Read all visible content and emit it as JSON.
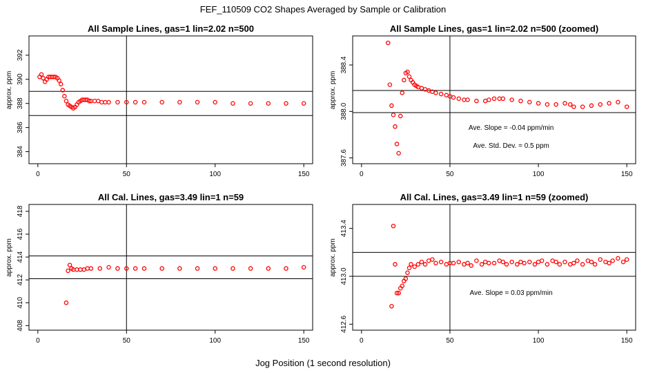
{
  "figure": {
    "title": "FEF_110509  CO2 Shapes Averaged by Sample or Calibration",
    "xlabel": "Jog Position (1 second resolution)"
  },
  "colors": {
    "points": "#ff0000",
    "axes": "#000000",
    "background": "#ffffff"
  },
  "chart_data": [
    {
      "type": "scatter",
      "title": "All Sample Lines, gas=1 lin=2.02 n=500",
      "xlabel": "",
      "ylabel": "approx. ppm",
      "xlim": [
        -5,
        155
      ],
      "ylim": [
        383,
        393.6
      ],
      "xticks": [
        0,
        50,
        100,
        150
      ],
      "yticks": [
        384,
        386,
        388,
        390,
        392
      ],
      "vline": 50,
      "hlines": [
        387,
        389
      ],
      "series": [
        {
          "x": [
            1,
            2,
            3,
            4,
            5,
            6,
            7,
            8,
            9,
            10,
            11,
            12,
            13,
            14,
            15,
            16,
            17,
            18,
            19,
            20,
            21,
            22,
            23,
            24,
            25,
            26,
            27,
            28,
            29,
            30,
            32,
            34,
            36,
            38,
            40,
            45,
            50,
            55,
            60,
            70,
            80,
            90,
            100,
            110,
            120,
            130,
            140,
            150
          ],
          "y": [
            390.2,
            390.4,
            390.1,
            389.8,
            390.0,
            390.2,
            390.2,
            390.2,
            390.2,
            390.2,
            390.1,
            389.9,
            389.6,
            389.1,
            388.6,
            388.2,
            387.9,
            387.8,
            387.7,
            387.6,
            387.7,
            387.9,
            388.1,
            388.2,
            388.3,
            388.3,
            388.3,
            388.3,
            388.2,
            388.2,
            388.2,
            388.2,
            388.1,
            388.1,
            388.1,
            388.1,
            388.1,
            388.1,
            388.1,
            388.1,
            388.1,
            388.1,
            388.1,
            388.0,
            388.0,
            388.0,
            388.0,
            388.0
          ]
        }
      ],
      "annotations": []
    },
    {
      "type": "scatter",
      "title": "All Sample Lines, gas=1 lin=2.02 n=500 (zoomed)",
      "xlabel": "",
      "ylabel": "approx. ppm",
      "xlim": [
        -5,
        155
      ],
      "ylim": [
        387.55,
        388.65
      ],
      "xticks": [
        0,
        50,
        100,
        150
      ],
      "yticks": [
        387.6,
        388.0,
        388.4
      ],
      "vline": 50,
      "hlines": [
        387.99,
        388.18
      ],
      "series": [
        {
          "x": [
            15,
            16,
            17,
            18,
            19,
            20,
            21,
            22,
            23,
            24,
            25,
            26,
            27,
            28,
            29,
            30,
            31,
            32,
            34,
            36,
            38,
            40,
            42,
            45,
            48,
            50,
            52,
            55,
            58,
            60,
            65,
            70,
            72,
            75,
            78,
            80,
            85,
            90,
            95,
            100,
            105,
            110,
            115,
            118,
            120,
            125,
            130,
            135,
            140,
            145,
            150
          ],
          "y": [
            388.59,
            388.23,
            388.05,
            387.97,
            387.87,
            387.72,
            387.64,
            387.96,
            388.16,
            388.27,
            388.33,
            388.34,
            388.3,
            388.27,
            388.25,
            388.23,
            388.22,
            388.21,
            388.2,
            388.19,
            388.18,
            388.17,
            388.16,
            388.15,
            388.14,
            388.13,
            388.12,
            388.11,
            388.1,
            388.1,
            388.09,
            388.09,
            388.1,
            388.11,
            388.11,
            388.11,
            388.1,
            388.09,
            388.08,
            388.07,
            388.06,
            388.06,
            388.07,
            388.06,
            388.04,
            388.04,
            388.05,
            388.06,
            388.07,
            388.08,
            388.04
          ]
        }
      ],
      "annotations": [
        "Ave. Slope =  -0.04  ppm/min",
        "Ave. Std. Dev. =  0.5  ppm"
      ]
    },
    {
      "type": "scatter",
      "title": "All Cal. Lines, gas=3.49 lin=1 n=59",
      "xlabel": "",
      "ylabel": "approx. ppm",
      "xlim": [
        -5,
        155
      ],
      "ylim": [
        407.6,
        418.6
      ],
      "xticks": [
        0,
        50,
        100,
        150
      ],
      "yticks": [
        408,
        410,
        412,
        414,
        416,
        418
      ],
      "vline": 50,
      "hlines": [
        412.1,
        414.1
      ],
      "series": [
        {
          "x": [
            16,
            17,
            18,
            19,
            20,
            22,
            24,
            26,
            28,
            30,
            35,
            40,
            45,
            50,
            55,
            60,
            70,
            80,
            90,
            100,
            110,
            120,
            130,
            140,
            150
          ],
          "y": [
            410.0,
            412.8,
            413.3,
            413.0,
            412.9,
            412.9,
            412.9,
            412.9,
            413.0,
            413.0,
            413.0,
            413.1,
            413.0,
            413.0,
            413.0,
            413.0,
            413.0,
            413.0,
            413.0,
            413.0,
            413.0,
            413.0,
            413.0,
            413.0,
            413.1
          ]
        }
      ],
      "annotations": []
    },
    {
      "type": "scatter",
      "title": "All Cal. Lines, gas=3.49 lin=1 n=59 (zoomed)",
      "xlabel": "",
      "ylabel": "approx. ppm",
      "xlim": [
        -5,
        155
      ],
      "ylim": [
        412.55,
        413.6
      ],
      "xticks": [
        0,
        50,
        100,
        150
      ],
      "yticks": [
        412.6,
        413.0,
        413.4
      ],
      "vline": 50,
      "hlines": [
        413.0,
        413.2
      ],
      "series": [
        {
          "x": [
            17,
            18,
            19,
            20,
            21,
            22,
            23,
            24,
            25,
            26,
            27,
            28,
            30,
            32,
            34,
            36,
            38,
            40,
            42,
            45,
            48,
            50,
            52,
            55,
            58,
            60,
            62,
            65,
            68,
            70,
            72,
            75,
            78,
            80,
            82,
            85,
            88,
            90,
            92,
            95,
            98,
            100,
            102,
            105,
            108,
            110,
            112,
            115,
            118,
            120,
            122,
            125,
            128,
            130,
            132,
            135,
            138,
            140,
            142,
            145,
            148,
            150
          ],
          "y": [
            412.75,
            413.42,
            413.1,
            412.86,
            412.86,
            412.9,
            412.92,
            412.96,
            412.98,
            413.03,
            413.07,
            413.1,
            413.08,
            413.1,
            413.12,
            413.1,
            413.13,
            413.14,
            413.11,
            413.12,
            413.1,
            413.11,
            413.11,
            413.12,
            413.1,
            413.11,
            413.09,
            413.13,
            413.1,
            413.12,
            413.11,
            413.11,
            413.13,
            413.12,
            413.1,
            413.12,
            413.1,
            413.12,
            413.11,
            413.12,
            413.1,
            413.12,
            413.13,
            413.1,
            413.13,
            413.12,
            413.1,
            413.12,
            413.1,
            413.11,
            413.13,
            413.1,
            413.13,
            413.12,
            413.1,
            413.14,
            413.12,
            413.11,
            413.13,
            413.15,
            413.12,
            413.14
          ]
        }
      ],
      "annotations": [
        "Ave. Slope =  0.03  ppm/min"
      ]
    }
  ]
}
